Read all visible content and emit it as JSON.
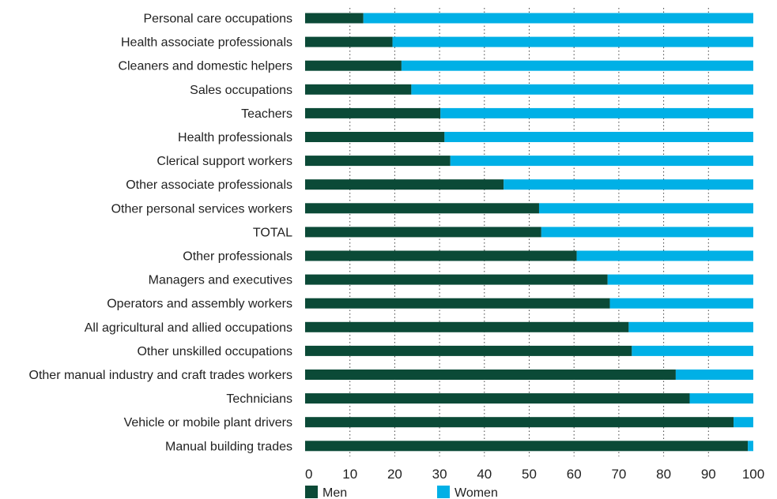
{
  "chart_data": {
    "type": "bar",
    "orientation": "horizontal",
    "stacked": true,
    "categories": [
      "Personal care occupations",
      "Health associate professionals",
      "Cleaners and domestic helpers",
      "Sales occupations",
      "Teachers",
      "Health professionals",
      "Clerical support workers",
      "Other associate professionals",
      "Other personal services workers",
      "TOTAL",
      "Other professionals",
      "Managers and executives",
      "Operators and assembly workers",
      "All agricultural and allied occupations",
      "Other unskilled occupations",
      "Other manual industry and craft trades workers",
      "Technicians",
      "Vehicle or mobile plant drivers",
      "Manual building trades"
    ],
    "series": [
      {
        "name": "Men",
        "color": "#0b4a37",
        "values": [
          13,
          19.5,
          21.5,
          23.7,
          30.2,
          31.1,
          32.4,
          44.3,
          52.2,
          52.7,
          60.6,
          67.5,
          68,
          72.2,
          72.9,
          82.7,
          85.8,
          95.6,
          98.8
        ]
      },
      {
        "name": "Women",
        "color": "#00b0e6",
        "values": [
          87,
          80.5,
          78.5,
          76.3,
          69.8,
          68.9,
          67.6,
          55.7,
          47.8,
          47.3,
          39.4,
          32.5,
          32,
          27.8,
          27.1,
          17.3,
          14.2,
          4.4,
          1.2
        ]
      }
    ],
    "xlim": [
      0,
      100
    ],
    "xticks": [
      "0",
      "10",
      "20",
      "30",
      "40",
      "50",
      "60",
      "70",
      "80",
      "90",
      "100"
    ],
    "grid": "vertical dotted",
    "legend_placement": "bottom-left",
    "title": "",
    "xlabel": "",
    "ylabel": ""
  }
}
